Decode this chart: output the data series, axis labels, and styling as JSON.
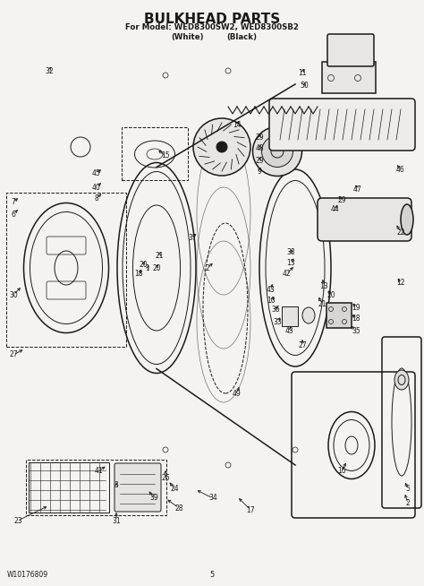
{
  "title": "BULKHEAD PARTS",
  "subtitle1": "For Model: WED8300SW2, WED8300SB2",
  "subtitle2_left": "(White)",
  "subtitle2_right": "(Black)",
  "footer_left": "W10176809",
  "footer_center": "5",
  "bg_color": "#f5f3ef",
  "line_color": "#1a1a1a",
  "figsize": [
    4.74,
    6.54
  ],
  "dpi": 100
}
